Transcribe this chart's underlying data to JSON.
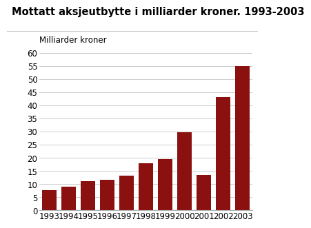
{
  "title": "Mottatt aksjeutbytte i milliarder kroner. 1993-2003",
  "ylabel_text": "Milliarder kroner",
  "years": [
    1993,
    1994,
    1995,
    1996,
    1997,
    1998,
    1999,
    2000,
    2001,
    2002,
    2003
  ],
  "values": [
    7.8,
    9.0,
    11.0,
    11.5,
    13.3,
    18.0,
    19.5,
    29.8,
    13.5,
    43.0,
    55.0
  ],
  "bar_color": "#8B1010",
  "ylim": [
    0,
    60
  ],
  "yticks": [
    0,
    5,
    10,
    15,
    20,
    25,
    30,
    35,
    40,
    45,
    50,
    55,
    60
  ],
  "background_color": "#ffffff",
  "grid_color": "#cccccc",
  "title_fontsize": 10.5,
  "ylabel_fontsize": 8.5,
  "tick_fontsize": 8.5
}
